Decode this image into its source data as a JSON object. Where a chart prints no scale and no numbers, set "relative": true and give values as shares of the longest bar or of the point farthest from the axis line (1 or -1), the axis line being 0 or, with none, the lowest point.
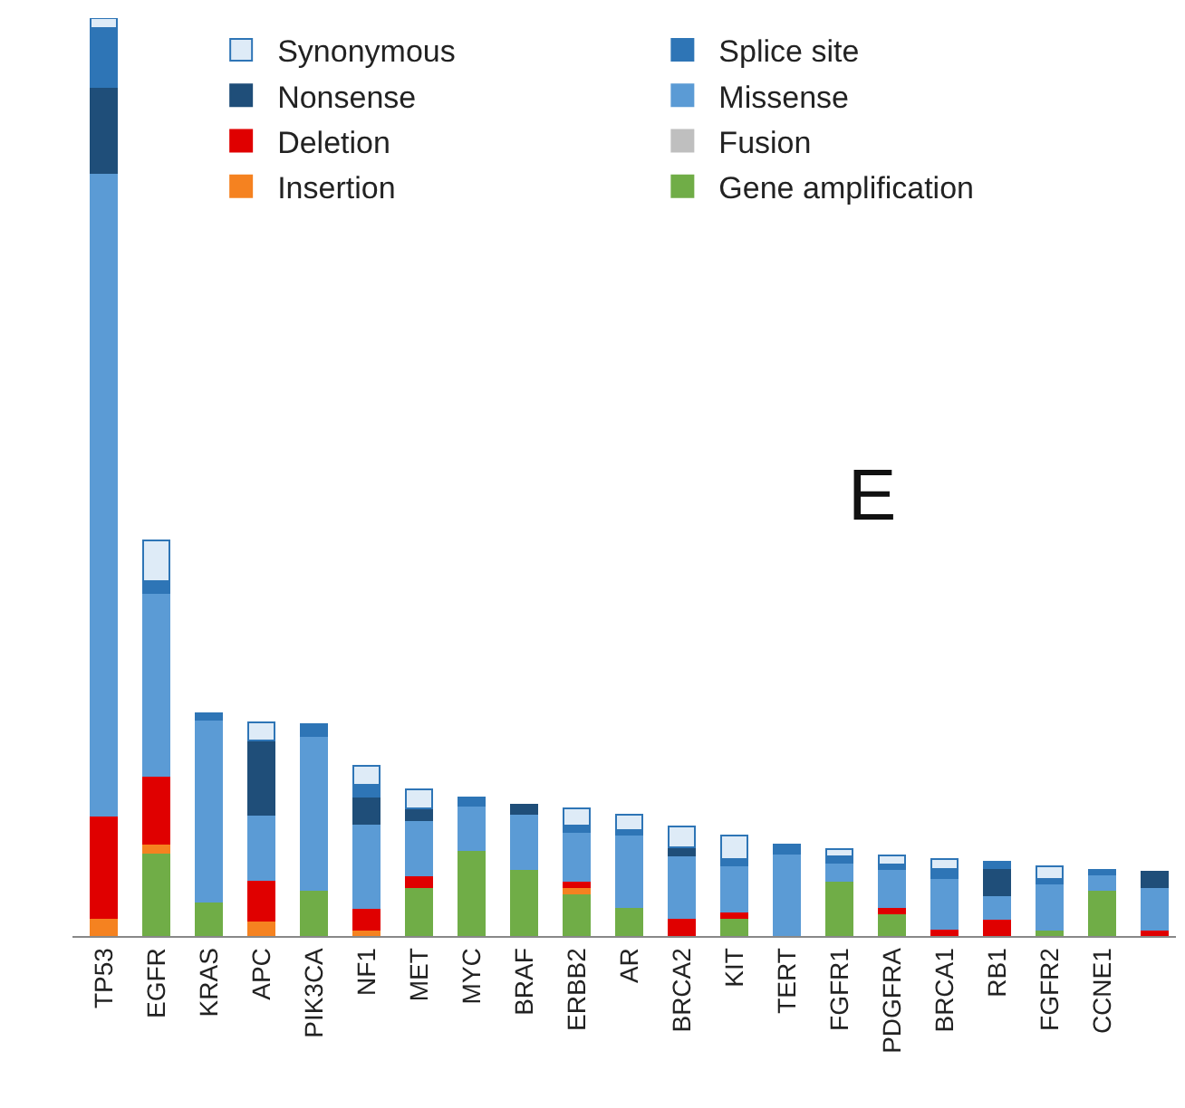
{
  "chart_data": {
    "type": "bar",
    "stacked": true,
    "relative": true,
    "legend": "top",
    "categories": [
      "TP53",
      "EGFR",
      "KRAS",
      "APC",
      "PIK3CA",
      "NF1",
      "MET",
      "MYC",
      "BRAF",
      "ERBB2",
      "AR",
      "BRCA2",
      "KIT",
      "TERT",
      "FGFR1",
      "PDGFRA",
      "BRCA1",
      "RB1",
      "FGFR2",
      "CCNE1",
      null
    ],
    "series": [
      {
        "name": "Gene amplification",
        "color": "#70ad47",
        "values": [
          null,
          0.091,
          0.037,
          null,
          0.05,
          null,
          0.053,
          0.094,
          0.073,
          0.046,
          0.032,
          null,
          0.02,
          null,
          0.06,
          0.025,
          null,
          null,
          0.007,
          0.05,
          null
        ]
      },
      {
        "name": "Insertion",
        "color": "#f58220",
        "values": [
          0.02,
          0.01,
          null,
          0.017,
          null,
          0.007,
          null,
          null,
          null,
          0.007,
          null,
          null,
          null,
          null,
          null,
          null,
          null,
          null,
          null,
          null,
          null
        ]
      },
      {
        "name": "Deletion",
        "color": "#e00000",
        "values": [
          0.111,
          0.074,
          null,
          0.044,
          null,
          0.024,
          0.013,
          null,
          null,
          0.007,
          null,
          0.02,
          0.007,
          null,
          null,
          0.007,
          0.008,
          0.019,
          null,
          null,
          0.007
        ]
      },
      {
        "name": "Missense",
        "color": "#5b9bd5",
        "values": [
          0.7,
          0.199,
          0.199,
          0.071,
          0.168,
          0.091,
          0.06,
          0.048,
          0.06,
          0.053,
          0.078,
          0.068,
          0.05,
          0.09,
          0.02,
          0.041,
          0.055,
          0.025,
          0.05,
          0.017,
          0.046
        ]
      },
      {
        "name": "Nonsense",
        "color": "#1f4e79",
        "values": [
          0.094,
          null,
          null,
          0.081,
          null,
          0.03,
          0.013,
          null,
          0.01,
          null,
          null,
          0.009,
          null,
          null,
          null,
          null,
          null,
          0.03,
          null,
          null,
          0.017
        ]
      },
      {
        "name": "Splice site",
        "color": "#2e75b6",
        "values": [
          0.064,
          0.013,
          0.007,
          null,
          0.013,
          0.013,
          null,
          0.009,
          null,
          0.007,
          0.005,
          null,
          0.007,
          0.01,
          0.007,
          0.005,
          0.01,
          0.007,
          0.005,
          0.005,
          null
        ]
      },
      {
        "name": "Fusion",
        "color": "#bfbfbf",
        "values": [
          null,
          null,
          null,
          null,
          null,
          null,
          null,
          null,
          null,
          null,
          null,
          null,
          null,
          null,
          null,
          null,
          null,
          null,
          null,
          null,
          null
        ]
      },
      {
        "name": "Synonymous",
        "color": "#deebf7",
        "values": [
          0.011,
          0.044,
          null,
          0.02,
          null,
          0.02,
          0.021,
          null,
          null,
          0.019,
          0.017,
          0.022,
          0.025,
          null,
          0.008,
          0.01,
          0.011,
          null,
          0.014,
          null,
          null
        ]
      }
    ],
    "annotations": [
      "E"
    ]
  }
}
